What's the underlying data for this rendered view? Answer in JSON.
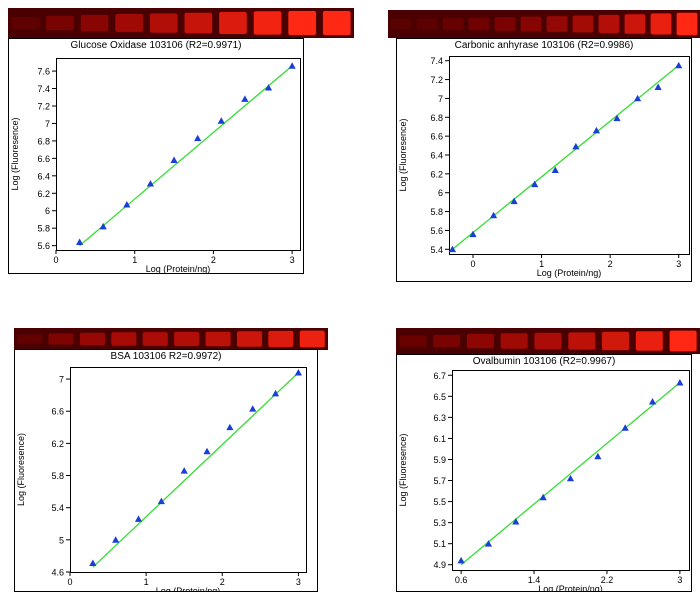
{
  "colors": {
    "fit_line": "#33dd33",
    "marker": "#1a3fd6",
    "gel_dark": "#4a0000",
    "gel_band": "#ff1a10",
    "axis": "#000000"
  },
  "chart_data": [
    {
      "type": "scatter",
      "title": "Glucose Oxidase 103106 (R2=0.9971)",
      "xlabel": "Log (Protein/ng)",
      "ylabel": "Log (Fluoresence)",
      "xlim": [
        0,
        3.1
      ],
      "ylim": [
        5.55,
        7.75
      ],
      "xticks": [
        "0",
        "1",
        "2",
        "3"
      ],
      "xtick_values": [
        0,
        1,
        2,
        3
      ],
      "yticks": [
        "5.6",
        "5.8",
        "6",
        "6.2",
        "6.4",
        "6.6",
        "6.8",
        "7",
        "7.2",
        "7.4",
        "7.6"
      ],
      "ytick_values": [
        5.6,
        5.8,
        6.0,
        6.2,
        6.4,
        6.6,
        6.8,
        7.0,
        7.2,
        7.4,
        7.6
      ],
      "x": [
        0.3,
        0.6,
        0.9,
        1.2,
        1.5,
        1.8,
        2.1,
        2.4,
        2.7,
        3.0
      ],
      "y": [
        5.64,
        5.82,
        6.07,
        6.31,
        6.58,
        6.83,
        7.03,
        7.28,
        7.41,
        7.66
      ],
      "fit": {
        "x": [
          0.3,
          3.0
        ],
        "y": [
          5.6,
          7.66
        ]
      },
      "gel_bands": [
        0.12,
        0.3,
        0.42,
        0.55,
        0.65,
        0.75,
        0.85,
        0.95,
        1.0,
        1.0
      ]
    },
    {
      "type": "scatter",
      "title": "Carbonic anhyrase 103106 (R2=0.9986)",
      "xlabel": "Log (Protein/ng)",
      "ylabel": "Log (Fluoresence)",
      "xlim": [
        -0.35,
        3.15
      ],
      "ylim": [
        5.35,
        7.45
      ],
      "xticks": [
        "0",
        "1",
        "2",
        "3"
      ],
      "xtick_values": [
        0,
        1,
        2,
        3
      ],
      "yticks": [
        "5.4",
        "5.6",
        "5.8",
        "6",
        "6.2",
        "6.4",
        "6.6",
        "6.8",
        "7",
        "7.2",
        "7.4"
      ],
      "ytick_values": [
        5.4,
        5.6,
        5.8,
        6.0,
        6.2,
        6.4,
        6.6,
        6.8,
        7.0,
        7.2,
        7.4
      ],
      "x": [
        -0.3,
        0.0,
        0.3,
        0.6,
        0.9,
        1.2,
        1.5,
        1.8,
        2.1,
        2.4,
        2.7,
        3.0
      ],
      "y": [
        5.4,
        5.56,
        5.76,
        5.91,
        6.09,
        6.24,
        6.49,
        6.66,
        6.79,
        7.0,
        7.12,
        7.35
      ],
      "fit": {
        "x": [
          -0.3,
          3.0
        ],
        "y": [
          5.4,
          7.35
        ]
      },
      "gel_bands": [
        0.06,
        0.1,
        0.18,
        0.25,
        0.32,
        0.4,
        0.48,
        0.57,
        0.66,
        0.78,
        0.9,
        1.0
      ]
    },
    {
      "type": "scatter",
      "title": "BSA 103106 R2=0.9972)",
      "xlabel": "Log (Protein/ng)",
      "ylabel": "Log (Fluoresence)",
      "xlim": [
        0,
        3.1
      ],
      "ylim": [
        4.6,
        7.15
      ],
      "xticks": [
        "0",
        "1",
        "2",
        "3"
      ],
      "xtick_values": [
        0,
        1,
        2,
        3
      ],
      "yticks": [
        "4.6",
        "5",
        "5.4",
        "5.8",
        "6.2",
        "6.6",
        "7"
      ],
      "ytick_values": [
        4.6,
        5.0,
        5.4,
        5.8,
        6.2,
        6.6,
        7.0
      ],
      "x": [
        0.3,
        0.6,
        0.9,
        1.2,
        1.5,
        1.8,
        2.1,
        2.4,
        2.7,
        3.0
      ],
      "y": [
        4.71,
        5.0,
        5.26,
        5.48,
        5.86,
        6.1,
        6.4,
        6.63,
        6.82,
        7.08
      ],
      "fit": {
        "x": [
          0.3,
          3.0
        ],
        "y": [
          4.66,
          7.08
        ]
      },
      "gel_bands": [
        0.15,
        0.35,
        0.5,
        0.6,
        0.62,
        0.65,
        0.7,
        0.78,
        0.85,
        0.92
      ]
    },
    {
      "type": "scatter",
      "title": "Ovalbumin 103106 (R2=0.9967)",
      "xlabel": "Log (Protein/ng)",
      "ylabel": "Log (Fluoresence)",
      "xlim": [
        0.5,
        3.1
      ],
      "ylim": [
        4.85,
        6.75
      ],
      "xticks": [
        "0.6",
        "1.4",
        "2.2",
        "3"
      ],
      "xtick_values": [
        0.6,
        1.4,
        2.2,
        3.0
      ],
      "yticks": [
        "4.9",
        "5.1",
        "5.3",
        "5.5",
        "5.7",
        "5.9",
        "6.1",
        "6.3",
        "6.5",
        "6.7"
      ],
      "ytick_values": [
        4.9,
        5.1,
        5.3,
        5.5,
        5.7,
        5.9,
        6.1,
        6.3,
        6.5,
        6.7
      ],
      "x": [
        0.6,
        0.9,
        1.2,
        1.5,
        1.8,
        2.1,
        2.4,
        2.7,
        3.0
      ],
      "y": [
        4.94,
        5.1,
        5.31,
        5.54,
        5.72,
        5.93,
        6.2,
        6.45,
        6.63
      ],
      "fit": {
        "x": [
          0.6,
          3.0
        ],
        "y": [
          4.9,
          6.63
        ]
      },
      "gel_bands": [
        0.2,
        0.3,
        0.45,
        0.55,
        0.62,
        0.7,
        0.8,
        0.9,
        1.0
      ]
    }
  ]
}
